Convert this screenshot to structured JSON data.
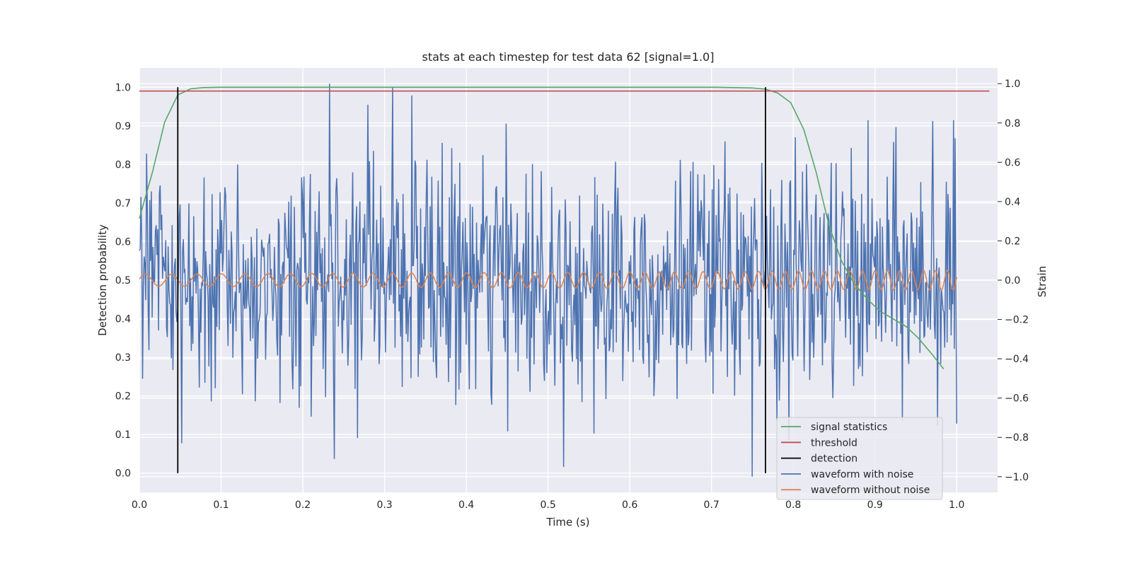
{
  "chart_data": {
    "type": "line",
    "title": "stats at each timestep for test data 62 [signal=1.0]",
    "xlabel": "Time (s)",
    "ylabel_left": "Detection probability",
    "ylabel_right": "Strain",
    "xlim": [
      0.0,
      1.05
    ],
    "ylim_left": [
      -0.05,
      1.05
    ],
    "ylim_right": [
      -1.08,
      1.08
    ],
    "x_ticks": [
      0.0,
      0.1,
      0.2,
      0.3,
      0.4,
      0.5,
      0.6,
      0.7,
      0.8,
      0.9,
      1.0
    ],
    "x_tick_labels": [
      "0.0",
      "0.1",
      "0.2",
      "0.3",
      "0.4",
      "0.5",
      "0.6",
      "0.7",
      "0.8",
      "0.9",
      "1.0"
    ],
    "y_left_ticks": [
      0.0,
      0.1,
      0.2,
      0.3,
      0.4,
      0.5,
      0.6,
      0.7,
      0.8,
      0.9,
      1.0
    ],
    "y_left_tick_labels": [
      "0.0",
      "0.1",
      "0.2",
      "0.3",
      "0.4",
      "0.5",
      "0.6",
      "0.7",
      "0.8",
      "0.9",
      "1.0"
    ],
    "y_right_ticks": [
      -1.0,
      -0.8,
      -0.6,
      -0.4,
      -0.2,
      0.0,
      0.2,
      0.4,
      0.6,
      0.8,
      1.0
    ],
    "y_right_tick_labels": [
      "−1.0",
      "−0.8",
      "−0.6",
      "−0.4",
      "−0.2",
      "0.0",
      "0.2",
      "0.4",
      "0.6",
      "0.8",
      "1.0"
    ],
    "grid": true,
    "legend_position": "bottom-right",
    "series": [
      {
        "name": "signal statistics",
        "color": "#55a868",
        "axis": "left",
        "x": [
          0.0,
          0.016,
          0.031,
          0.047,
          0.063,
          0.078,
          0.1,
          0.2,
          0.3,
          0.4,
          0.5,
          0.6,
          0.7,
          0.75,
          0.766,
          0.781,
          0.797,
          0.813,
          0.828,
          0.844,
          0.859,
          0.875,
          0.891,
          0.906,
          0.922,
          0.938,
          0.953,
          0.969,
          0.984
        ],
        "y": [
          0.66,
          0.78,
          0.91,
          0.98,
          0.996,
          0.999,
          1.0,
          1.0,
          1.0,
          1.0,
          1.0,
          1.0,
          1.0,
          0.998,
          0.995,
          0.985,
          0.96,
          0.89,
          0.78,
          0.64,
          0.55,
          0.49,
          0.45,
          0.42,
          0.4,
          0.38,
          0.35,
          0.31,
          0.27
        ]
      },
      {
        "name": "threshold",
        "color": "#c44e52",
        "axis": "left",
        "x": [
          0.0,
          1.04
        ],
        "y": [
          0.99,
          0.99
        ]
      },
      {
        "name": "detection",
        "color": "#000000",
        "axis": "left",
        "segments": [
          {
            "x": 0.047,
            "y": [
              0.0,
              1.0
            ]
          },
          {
            "x": 0.766,
            "y": [
              0.0,
              1.0
            ]
          }
        ]
      },
      {
        "name": "waveform with noise",
        "color": "#4c72b0",
        "axis": "right",
        "description_free": true,
        "x_range": [
          0.0,
          1.0
        ],
        "n_points": 1024,
        "y_spread": 0.3,
        "peaks": [
          {
            "x": 0.233,
            "y": 1.0
          },
          {
            "x": 0.31,
            "y": 0.98
          },
          {
            "x": 0.333,
            "y": 0.94
          },
          {
            "x": 0.971,
            "y": 0.81
          },
          {
            "x": 0.75,
            "y": -1.0
          },
          {
            "x": 0.239,
            "y": -0.91
          },
          {
            "x": 0.052,
            "y": -0.83
          },
          {
            "x": 0.556,
            "y": -0.78
          },
          {
            "x": 1.0,
            "y": -0.73
          }
        ]
      },
      {
        "name": "waveform without noise",
        "color": "#dd8452",
        "axis": "right",
        "x_range": [
          0.0,
          1.0
        ],
        "amplitude_start": 0.03,
        "amplitude_end": 0.05,
        "freq_start_hz": 30,
        "freq_end_hz": 70
      }
    ]
  }
}
